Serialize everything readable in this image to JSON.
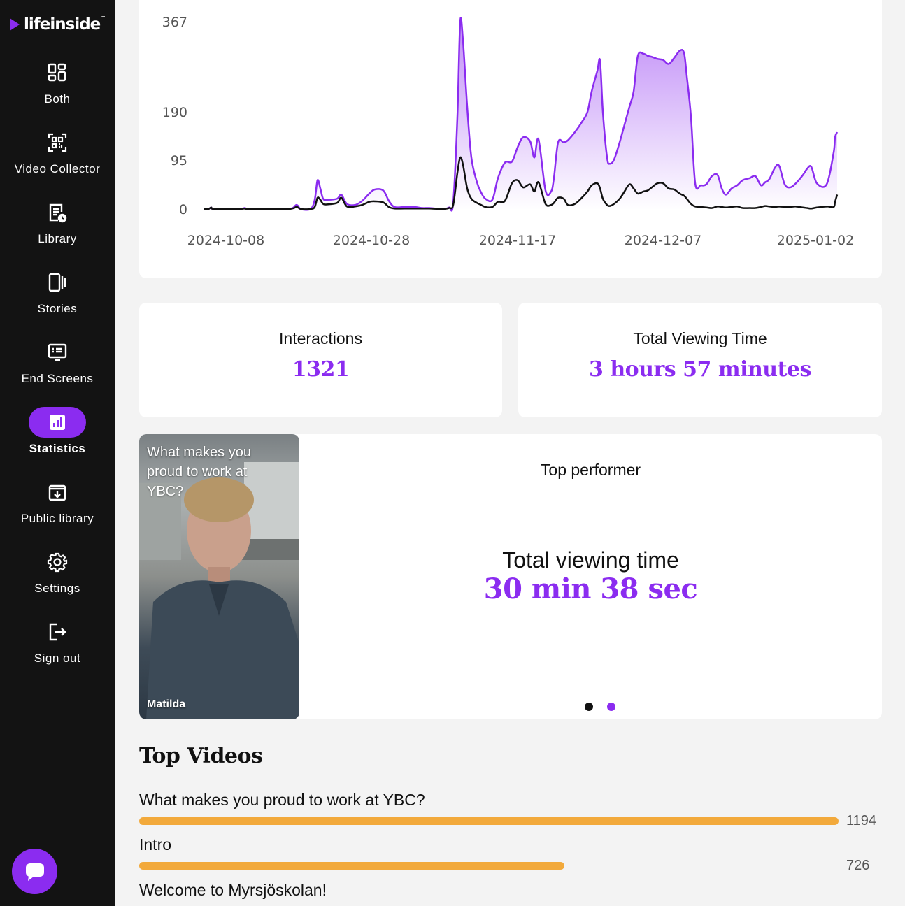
{
  "app": {
    "logo_text": "lifeinside",
    "logo_tm": "™"
  },
  "sidebar": {
    "items": [
      {
        "label": "Both",
        "icon": "dashboard-icon"
      },
      {
        "label": "Video Collector",
        "icon": "qr-code-icon"
      },
      {
        "label": "Library",
        "icon": "library-clock-icon"
      },
      {
        "label": "Stories",
        "icon": "stories-icon"
      },
      {
        "label": "End Screens",
        "icon": "end-screen-icon"
      },
      {
        "label": "Statistics",
        "icon": "bar-chart-icon",
        "active": true
      },
      {
        "label": "Public library",
        "icon": "download-box-icon"
      },
      {
        "label": "Settings",
        "icon": "gear-icon"
      },
      {
        "label": "Sign out",
        "icon": "sign-out-icon"
      }
    ],
    "chat_icon": "chat-icon"
  },
  "chart_data": {
    "type": "area",
    "x_ticks": [
      "2024-10-08",
      "2024-10-28",
      "2024-11-17",
      "2024-12-07",
      "2025-01-02"
    ],
    "y_ticks": [
      0,
      95,
      190,
      367
    ],
    "ylim": [
      0,
      367
    ],
    "series": [
      {
        "color": "#8b2cf0",
        "fill": true,
        "points": [
          [
            0,
            0
          ],
          [
            6,
            0
          ],
          [
            10,
            3
          ],
          [
            14,
            0
          ],
          [
            50,
            0
          ],
          [
            58,
            2
          ],
          [
            65,
            0
          ],
          [
            120,
            0
          ],
          [
            132,
            8
          ],
          [
            138,
            0
          ],
          [
            152,
            0
          ],
          [
            158,
            18
          ],
          [
            162,
            56
          ],
          [
            166,
            40
          ],
          [
            170,
            20
          ],
          [
            176,
            18
          ],
          [
            190,
            20
          ],
          [
            196,
            28
          ],
          [
            204,
            10
          ],
          [
            216,
            8
          ],
          [
            226,
            16
          ],
          [
            236,
            30
          ],
          [
            244,
            38
          ],
          [
            256,
            36
          ],
          [
            264,
            16
          ],
          [
            272,
            4
          ],
          [
            286,
            4
          ],
          [
            300,
            4
          ],
          [
            312,
            2
          ],
          [
            322,
            2
          ],
          [
            340,
            0
          ],
          [
            350,
            3
          ],
          [
            356,
            12
          ],
          [
            362,
            180
          ],
          [
            366,
            366
          ],
          [
            370,
            330
          ],
          [
            376,
            200
          ],
          [
            382,
            100
          ],
          [
            390,
            52
          ],
          [
            396,
            32
          ],
          [
            402,
            20
          ],
          [
            412,
            18
          ],
          [
            420,
            60
          ],
          [
            430,
            90
          ],
          [
            440,
            92
          ],
          [
            448,
            120
          ],
          [
            456,
            140
          ],
          [
            466,
            132
          ],
          [
            472,
            100
          ],
          [
            478,
            136
          ],
          [
            488,
            36
          ],
          [
            496,
            34
          ],
          [
            500,
            60
          ],
          [
            506,
            130
          ],
          [
            514,
            130
          ],
          [
            520,
            134
          ],
          [
            530,
            150
          ],
          [
            540,
            170
          ],
          [
            548,
            190
          ],
          [
            554,
            230
          ],
          [
            562,
            270
          ],
          [
            566,
            290
          ],
          [
            570,
            190
          ],
          [
            576,
            100
          ],
          [
            580,
            88
          ],
          [
            586,
            96
          ],
          [
            594,
            130
          ],
          [
            600,
            160
          ],
          [
            608,
            200
          ],
          [
            614,
            230
          ],
          [
            620,
            300
          ],
          [
            628,
            304
          ],
          [
            634,
            300
          ],
          [
            640,
            298
          ],
          [
            648,
            294
          ],
          [
            656,
            292
          ],
          [
            664,
            284
          ],
          [
            672,
            296
          ],
          [
            680,
            310
          ],
          [
            686,
            306
          ],
          [
            690,
            260
          ],
          [
            696,
            180
          ],
          [
            702,
            50
          ],
          [
            710,
            46
          ],
          [
            718,
            48
          ],
          [
            726,
            64
          ],
          [
            734,
            66
          ],
          [
            740,
            40
          ],
          [
            746,
            28
          ],
          [
            754,
            40
          ],
          [
            762,
            46
          ],
          [
            770,
            56
          ],
          [
            780,
            60
          ],
          [
            788,
            64
          ],
          [
            796,
            46
          ],
          [
            802,
            52
          ],
          [
            808,
            58
          ],
          [
            816,
            80
          ],
          [
            822,
            84
          ],
          [
            830,
            48
          ],
          [
            838,
            42
          ],
          [
            846,
            50
          ],
          [
            856,
            66
          ],
          [
            862,
            78
          ],
          [
            868,
            82
          ],
          [
            876,
            50
          ],
          [
            890,
            48
          ],
          [
            900,
            110
          ],
          [
            902,
            140
          ],
          [
            905,
            150
          ]
        ]
      },
      {
        "color": "#111111",
        "fill": false,
        "points": [
          [
            0,
            0
          ],
          [
            6,
            0
          ],
          [
            10,
            3
          ],
          [
            14,
            0
          ],
          [
            50,
            0
          ],
          [
            58,
            1
          ],
          [
            65,
            0
          ],
          [
            120,
            0
          ],
          [
            132,
            4
          ],
          [
            138,
            0
          ],
          [
            152,
            0
          ],
          [
            158,
            4
          ],
          [
            162,
            22
          ],
          [
            166,
            18
          ],
          [
            170,
            10
          ],
          [
            176,
            9
          ],
          [
            190,
            12
          ],
          [
            196,
            22
          ],
          [
            204,
            5
          ],
          [
            216,
            5
          ],
          [
            226,
            8
          ],
          [
            236,
            14
          ],
          [
            244,
            15
          ],
          [
            256,
            13
          ],
          [
            264,
            4
          ],
          [
            272,
            1
          ],
          [
            286,
            1
          ],
          [
            300,
            1
          ],
          [
            312,
            1
          ],
          [
            322,
            1
          ],
          [
            340,
            0
          ],
          [
            350,
            2
          ],
          [
            356,
            8
          ],
          [
            362,
            70
          ],
          [
            366,
            100
          ],
          [
            370,
            86
          ],
          [
            376,
            40
          ],
          [
            382,
            20
          ],
          [
            390,
            12
          ],
          [
            396,
            8
          ],
          [
            402,
            4
          ],
          [
            412,
            4
          ],
          [
            420,
            14
          ],
          [
            430,
            16
          ],
          [
            440,
            50
          ],
          [
            448,
            56
          ],
          [
            456,
            42
          ],
          [
            466,
            48
          ],
          [
            472,
            34
          ],
          [
            478,
            52
          ],
          [
            488,
            10
          ],
          [
            496,
            8
          ],
          [
            500,
            12
          ],
          [
            506,
            22
          ],
          [
            514,
            20
          ],
          [
            520,
            8
          ],
          [
            530,
            10
          ],
          [
            540,
            22
          ],
          [
            548,
            34
          ],
          [
            554,
            46
          ],
          [
            562,
            50
          ],
          [
            566,
            40
          ],
          [
            570,
            20
          ],
          [
            576,
            8
          ],
          [
            580,
            6
          ],
          [
            586,
            10
          ],
          [
            594,
            20
          ],
          [
            600,
            32
          ],
          [
            608,
            48
          ],
          [
            614,
            40
          ],
          [
            620,
            30
          ],
          [
            628,
            34
          ],
          [
            634,
            36
          ],
          [
            640,
            42
          ],
          [
            648,
            50
          ],
          [
            656,
            50
          ],
          [
            664,
            40
          ],
          [
            672,
            38
          ],
          [
            680,
            30
          ],
          [
            686,
            26
          ],
          [
            690,
            20
          ],
          [
            696,
            10
          ],
          [
            702,
            5
          ],
          [
            710,
            4
          ],
          [
            718,
            3
          ],
          [
            726,
            2
          ],
          [
            734,
            5
          ],
          [
            740,
            4
          ],
          [
            746,
            3
          ],
          [
            754,
            4
          ],
          [
            762,
            5
          ],
          [
            770,
            2
          ],
          [
            780,
            2
          ],
          [
            788,
            2
          ],
          [
            796,
            4
          ],
          [
            802,
            6
          ],
          [
            808,
            5
          ],
          [
            816,
            4
          ],
          [
            822,
            5
          ],
          [
            830,
            4
          ],
          [
            838,
            4
          ],
          [
            846,
            5
          ],
          [
            856,
            3
          ],
          [
            862,
            2
          ],
          [
            868,
            1
          ],
          [
            876,
            3
          ],
          [
            890,
            5
          ],
          [
            900,
            4
          ],
          [
            902,
            14
          ],
          [
            905,
            28
          ]
        ]
      }
    ]
  },
  "stats": {
    "interactions_label": "Interactions",
    "interactions_value": "1321",
    "viewing_label": "Total Viewing Time",
    "viewing_value": "3 hours 57 minutes"
  },
  "top_performer": {
    "title": "Top performer",
    "video_caption": "What makes you proud to work at YBC?",
    "video_author": "Matilda",
    "metric_label": "Total viewing time",
    "metric_value": "30 min 38 sec",
    "carousel_active_index": 2
  },
  "top_videos": {
    "title": "Top Videos",
    "max": 1194,
    "items": [
      {
        "name": "What makes you proud to work at YBC?",
        "count": 1194
      },
      {
        "name": "Intro",
        "count": 726
      },
      {
        "name": "Welcome to Myrsjöskolan!",
        "count": null
      }
    ]
  }
}
